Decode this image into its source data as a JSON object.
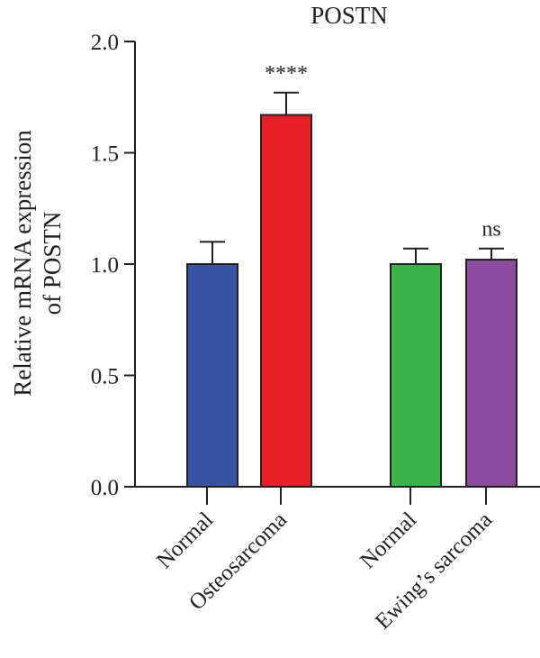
{
  "chart_data": {
    "type": "bar",
    "title": "POSTN",
    "ylabel_lines": [
      "Relative mRNA expression",
      "of POSTN"
    ],
    "ylim": [
      0,
      2.0
    ],
    "yticks": [
      0.0,
      0.5,
      1.0,
      1.5,
      2.0
    ],
    "ytick_labels": [
      "0.0",
      "0.5",
      "1.0",
      "1.5",
      "2.0"
    ],
    "categories": [
      "Normal",
      "Osteosarcoma",
      "Normal",
      "Ewing’s sarcoma"
    ],
    "values": [
      1.0,
      1.67,
      1.0,
      1.02
    ],
    "errors": [
      0.1,
      0.1,
      0.07,
      0.05
    ],
    "colors": [
      "#3754a3",
      "#ea2027",
      "#39b54a",
      "#8c4b9e"
    ],
    "annotations": [
      "",
      "****",
      "",
      "ns"
    ],
    "grid": false
  }
}
